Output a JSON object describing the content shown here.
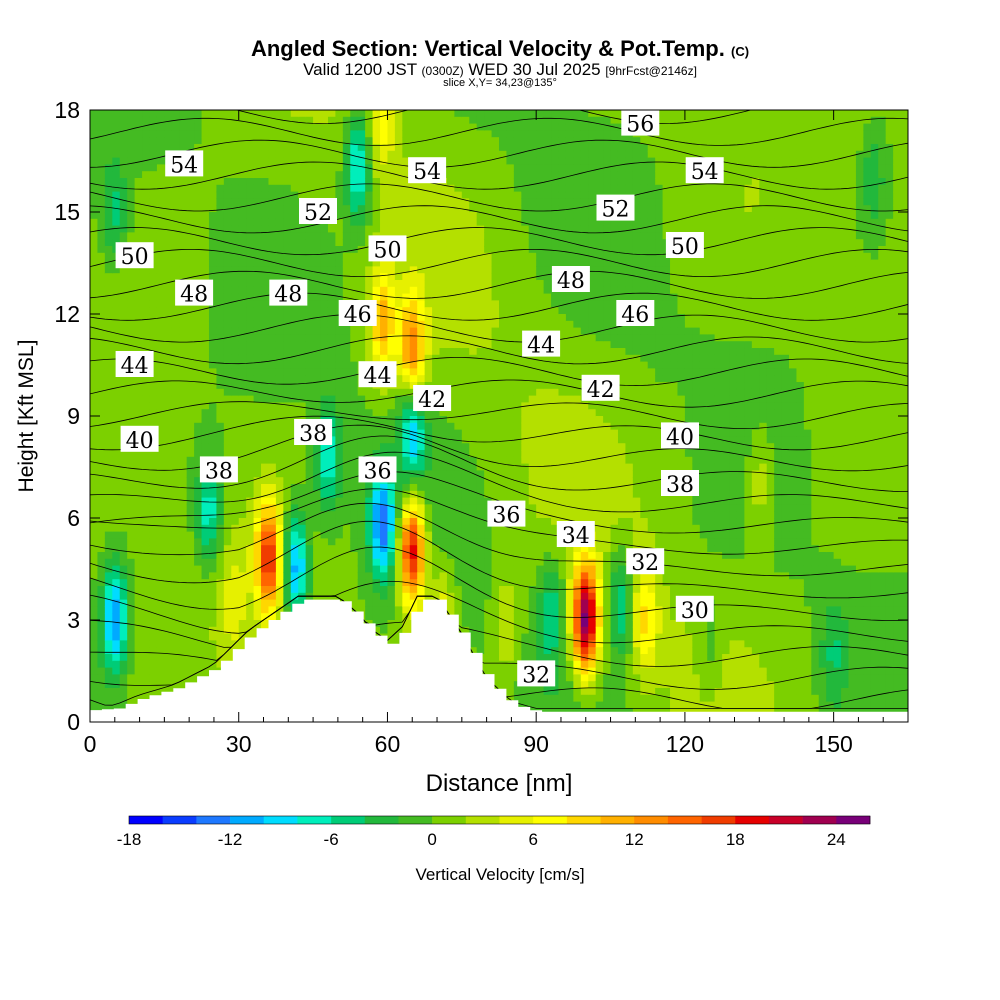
{
  "header": {
    "title": "Angled Section: Vertical Velocity & Pot.Temp.",
    "title_units": "(C)",
    "valid_prefix": "Valid 1200 JST",
    "valid_zulu": "(0300Z)",
    "valid_date": "WED 30 Jul 2025",
    "forecast_note": "[9hrFcst@2146z]",
    "slice_info": "slice X,Y= 34,23@135°"
  },
  "chart_data": {
    "type": "heatmap",
    "title": "Angled Section: Vertical Velocity & Pot.Temp.",
    "xlabel": "Distance [nm]",
    "ylabel": "Height [Kft MSL]",
    "xlim": [
      0,
      165
    ],
    "ylim": [
      0,
      18
    ],
    "x_ticks": [
      0,
      30,
      60,
      90,
      120,
      150
    ],
    "y_ticks": [
      0,
      3,
      6,
      9,
      12,
      15,
      18
    ],
    "colorbar": {
      "label": "Vertical Velocity [cm/s]",
      "range": [
        -18,
        26
      ],
      "step": 2,
      "tick_labels": [
        "-18",
        "-12",
        "-6",
        "0",
        "6",
        "12",
        "18",
        "24"
      ],
      "colors": [
        "#0000ff",
        "#0a3cff",
        "#1e78ff",
        "#00aaff",
        "#00dcff",
        "#00eebb",
        "#00cc77",
        "#22b83c",
        "#44bb22",
        "#7cd000",
        "#b4e000",
        "#e6f000",
        "#ffff00",
        "#ffd700",
        "#ffb000",
        "#ff8c00",
        "#ff6400",
        "#f03c00",
        "#e60000",
        "#c80028",
        "#a00050",
        "#780078"
      ]
    },
    "velocity_cells": [
      {
        "x": 36,
        "y": 4.8,
        "w": 17
      },
      {
        "x": 65,
        "y": 5.0,
        "w": 20
      },
      {
        "x": 100,
        "y": 3.0,
        "w": 24
      },
      {
        "x": 41.5,
        "y": 4.6,
        "w": -12
      },
      {
        "x": 59,
        "y": 5.8,
        "w": -13
      },
      {
        "x": 29,
        "y": 3.5,
        "w": 4
      },
      {
        "x": 71,
        "y": 3.0,
        "w": 6
      },
      {
        "x": 84,
        "y": 2.8,
        "w": 4
      },
      {
        "x": 112,
        "y": 3.0,
        "w": 7
      },
      {
        "x": 107,
        "y": 3.5,
        "w": -7
      },
      {
        "x": 93,
        "y": 3.2,
        "w": -6
      },
      {
        "x": 5,
        "y": 3.0,
        "w": -12
      },
      {
        "x": 24,
        "y": 6.2,
        "w": -8
      },
      {
        "x": 48,
        "y": 7.7,
        "w": -8
      },
      {
        "x": 65,
        "y": 8.6,
        "w": -10
      },
      {
        "x": 54,
        "y": 16.3,
        "w": -10
      },
      {
        "x": 59,
        "y": 11.7,
        "w": 10
      },
      {
        "x": 65,
        "y": 10.9,
        "w": 13
      },
      {
        "x": 59,
        "y": 17.9,
        "w": 6
      },
      {
        "x": 118,
        "y": 7.9,
        "w": 2
      },
      {
        "x": 135,
        "y": 7.0,
        "w": 4
      },
      {
        "x": 158,
        "y": 16.0,
        "w": -4
      },
      {
        "x": 5,
        "y": 15.0,
        "w": -5
      },
      {
        "x": 150,
        "y": 2.0,
        "w": -4
      },
      {
        "x": 125,
        "y": 2.2,
        "w": -3
      }
    ],
    "terrain": [
      [
        0,
        0.35
      ],
      [
        5,
        0.4
      ],
      [
        10,
        0.7
      ],
      [
        17,
        1.0
      ],
      [
        25,
        1.6
      ],
      [
        32,
        2.6
      ],
      [
        37,
        3.1
      ],
      [
        42,
        3.6
      ],
      [
        50,
        3.6
      ],
      [
        54,
        3.1
      ],
      [
        57,
        2.6
      ],
      [
        60,
        2.3
      ],
      [
        63,
        2.7
      ],
      [
        66,
        3.6
      ],
      [
        70,
        3.6
      ],
      [
        75,
        2.5
      ],
      [
        80,
        1.2
      ],
      [
        85,
        0.5
      ],
      [
        90,
        0.3
      ],
      [
        165,
        0.3
      ]
    ],
    "isentropes": [
      {
        "theta": 30,
        "label": "30",
        "label_x": 122,
        "label_y": 3.3
      },
      {
        "theta": 32,
        "label": "32",
        "label_x": 112,
        "label_y": 4.7
      },
      {
        "theta": 32,
        "label": "32",
        "label_x": 90,
        "label_y": 1.4
      },
      {
        "theta": 34,
        "label": "34",
        "label_x": 98,
        "label_y": 5.5
      },
      {
        "theta": 36,
        "label": "36",
        "label_x": 84,
        "label_y": 6.1
      },
      {
        "theta": 36,
        "label": "36",
        "label_x": 58,
        "label_y": 7.4
      },
      {
        "theta": 38,
        "label": "38",
        "label_x": 26,
        "label_y": 7.4
      },
      {
        "theta": 38,
        "label": "38",
        "label_x": 45,
        "label_y": 8.5
      },
      {
        "theta": 38,
        "label": "38",
        "label_x": 119,
        "label_y": 7.0
      },
      {
        "theta": 40,
        "label": "40",
        "label_x": 10,
        "label_y": 8.3
      },
      {
        "theta": 40,
        "label": "40",
        "label_x": 119,
        "label_y": 8.4
      },
      {
        "theta": 42,
        "label": "42",
        "label_x": 69,
        "label_y": 9.5
      },
      {
        "theta": 42,
        "label": "42",
        "label_x": 103,
        "label_y": 9.8
      },
      {
        "theta": 44,
        "label": "44",
        "label_x": 9,
        "label_y": 10.5
      },
      {
        "theta": 44,
        "label": "44",
        "label_x": 58,
        "label_y": 10.2
      },
      {
        "theta": 44,
        "label": "44",
        "label_x": 91,
        "label_y": 11.1
      },
      {
        "theta": 46,
        "label": "46",
        "label_x": 54,
        "label_y": 12.0
      },
      {
        "theta": 46,
        "label": "46",
        "label_x": 110,
        "label_y": 12.0
      },
      {
        "theta": 48,
        "label": "48",
        "label_x": 21,
        "label_y": 12.6
      },
      {
        "theta": 48,
        "label": "48",
        "label_x": 40,
        "label_y": 12.6
      },
      {
        "theta": 48,
        "label": "48",
        "label_x": 97,
        "label_y": 13.0
      },
      {
        "theta": 50,
        "label": "50",
        "label_x": 9,
        "label_y": 13.7
      },
      {
        "theta": 50,
        "label": "50",
        "label_x": 60,
        "label_y": 13.9
      },
      {
        "theta": 50,
        "label": "50",
        "label_x": 120,
        "label_y": 14.0
      },
      {
        "theta": 52,
        "label": "52",
        "label_x": 46,
        "label_y": 15.0
      },
      {
        "theta": 52,
        "label": "52",
        "label_x": 106,
        "label_y": 15.1
      },
      {
        "theta": 54,
        "label": "54",
        "label_x": 19,
        "label_y": 16.4
      },
      {
        "theta": 54,
        "label": "54",
        "label_x": 68,
        "label_y": 16.2
      },
      {
        "theta": 54,
        "label": "54",
        "label_x": 124,
        "label_y": 16.2
      },
      {
        "theta": 56,
        "label": "56",
        "label_x": 111,
        "label_y": 17.6
      }
    ]
  }
}
